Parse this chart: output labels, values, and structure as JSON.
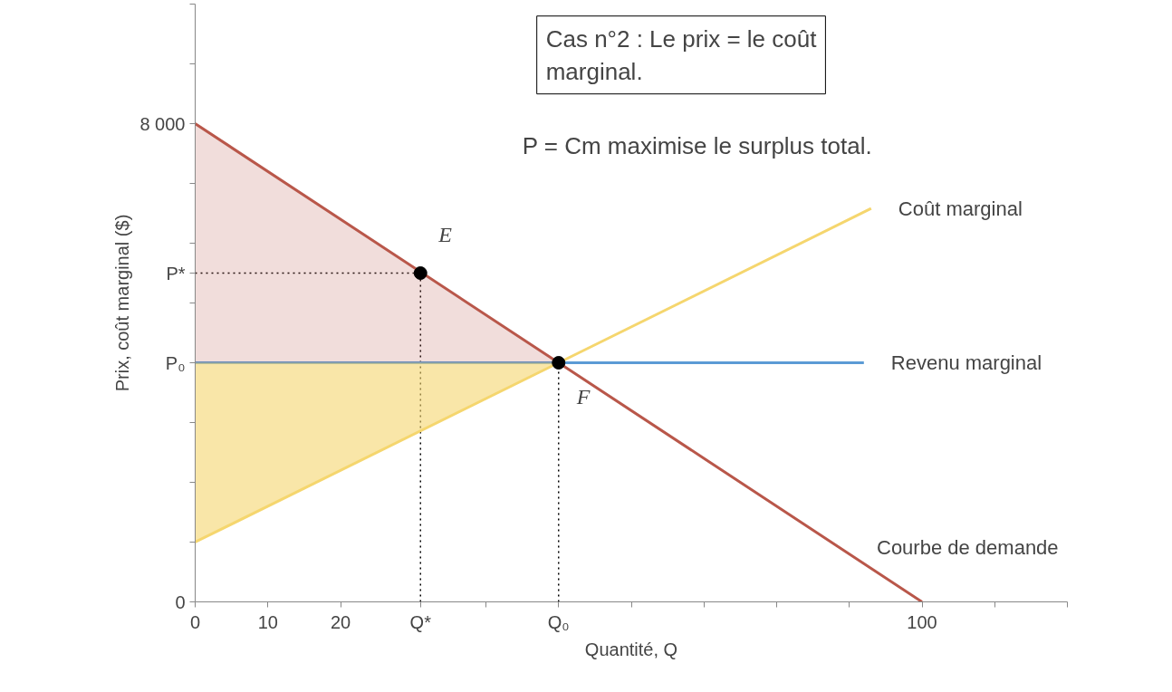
{
  "chart_data": {
    "type": "line",
    "xlabel": "Quantité, Q",
    "ylabel": "Prix, coût marginal ($)",
    "xlim": [
      0,
      120
    ],
    "ylim": [
      0,
      10000
    ],
    "xticks": [
      0,
      10,
      20,
      {
        "value": 31,
        "label": "Q*"
      },
      {
        "value": 40,
        "label": null
      },
      {
        "value": 50,
        "label": "Q₀"
      },
      {
        "value": 60,
        "label": null
      },
      {
        "value": 70,
        "label": null
      },
      {
        "value": 80,
        "label": null
      },
      {
        "value": 90,
        "label": null
      },
      100,
      {
        "value": 110,
        "label": null
      },
      {
        "value": 120,
        "label": null
      }
    ],
    "yticks": [
      0,
      {
        "value": 1000,
        "label": null
      },
      {
        "value": 2000,
        "label": null
      },
      {
        "value": 3000,
        "label": null
      },
      {
        "value": 4000,
        "label": "P₀"
      },
      {
        "value": 5000,
        "label": null
      },
      {
        "value": 5500,
        "label": "P*"
      },
      {
        "value": 6000,
        "label": null
      },
      {
        "value": 7000,
        "label": null
      },
      {
        "value": 8000,
        "label": "8 000"
      },
      {
        "value": 9000,
        "label": null
      },
      {
        "value": 10000,
        "label": null
      }
    ],
    "grid": false,
    "legend": false,
    "series": [
      {
        "type": "line",
        "line_style": "dotted",
        "color": "#000000",
        "x": [
          0,
          31
        ],
        "values": [
          5500,
          5500
        ]
      },
      {
        "type": "line",
        "line_style": "dotted",
        "color": "#000000",
        "x": [
          31,
          31
        ],
        "values": [
          0,
          5500
        ]
      },
      {
        "type": "line",
        "line_style": "dotted",
        "color": "#000000",
        "x": [
          50,
          50
        ],
        "values": [
          0,
          4000
        ]
      },
      {
        "name": "Revenu marginal",
        "color": "#5b9bd5",
        "x": [
          0,
          92
        ],
        "values": [
          4000,
          4000
        ]
      },
      {
        "name": "Coût marginal",
        "color": "#f5d66e",
        "x": [
          0,
          50,
          93
        ],
        "values": [
          1000,
          4000,
          6580
        ],
        "lower": [
          1000,
          4000,
          null
        ],
        "upper": [
          4000,
          4000,
          null
        ]
      },
      {
        "name": "Courbe de demande",
        "color": "#b9574a",
        "x": [
          0,
          50,
          100
        ],
        "values": [
          8000,
          4000,
          0
        ],
        "lower": [
          4000,
          4000,
          null
        ],
        "upper": [
          8000,
          4000,
          null
        ]
      },
      {
        "type": "scatter",
        "marker": "circle",
        "color": "#000000",
        "x": [
          31,
          50
        ],
        "values": [
          5500,
          4000
        ]
      }
    ],
    "annotations": [
      "Cas n°2 : Le prix = le coût marginal.",
      "P = Cm maximise le surplus total.",
      {
        "text": "E",
        "x": 31,
        "y": 5500
      },
      {
        "text": "F",
        "x": 50,
        "y": 4000
      }
    ]
  }
}
